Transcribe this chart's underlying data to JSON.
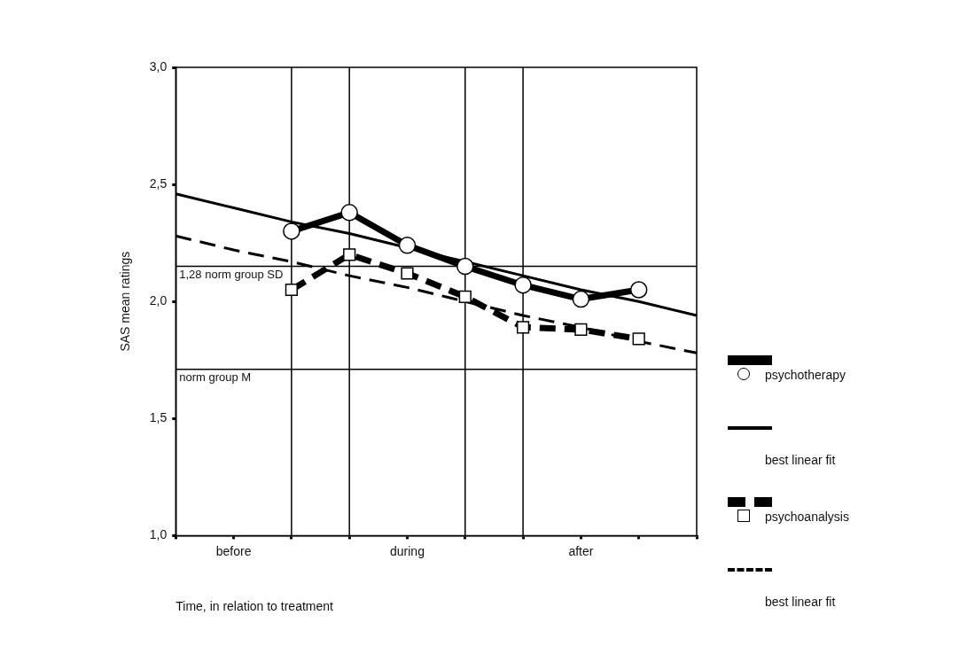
{
  "chart_data": {
    "type": "line",
    "xlabel": "Time, in relation to treatment",
    "ylabel": "SAS mean ratings",
    "categories": [
      null,
      "before",
      null,
      null,
      "during",
      null,
      null,
      "after",
      null,
      null
    ],
    "series": [
      {
        "name": "psychotherapy",
        "color": "#000000",
        "marker": "circle",
        "line_style": "solid",
        "values": [
          null,
          null,
          2.3,
          2.38,
          2.24,
          2.15,
          2.07,
          2.01,
          2.05,
          null
        ]
      },
      {
        "name": "best linear fit",
        "color": "#000000",
        "marker": "none",
        "line_style": "solid",
        "values": [
          2.46,
          2.4,
          2.34,
          2.29,
          2.23,
          2.17,
          2.11,
          2.05,
          2.0,
          1.94
        ]
      },
      {
        "name": "psychoanalysis",
        "color": "#000000",
        "marker": "square",
        "line_style": "dashed",
        "values": [
          null,
          null,
          2.05,
          2.2,
          2.12,
          2.02,
          1.89,
          1.88,
          1.84,
          null
        ]
      },
      {
        "name": "best linear fit",
        "color": "#000000",
        "marker": "none",
        "line_style": "dashed",
        "values": [
          2.28,
          2.22,
          2.17,
          2.11,
          2.06,
          2.0,
          1.94,
          1.89,
          1.83,
          1.78
        ]
      }
    ],
    "ylim": [
      1,
      3
    ],
    "yticks": [
      {
        "value": 1,
        "label": "1,0"
      },
      {
        "value": 1.5,
        "label": "1,5"
      },
      {
        "value": 2,
        "label": "2,0"
      },
      {
        "value": 2.5,
        "label": "2,5"
      },
      {
        "value": 3,
        "label": "3,0"
      }
    ],
    "ref_lines": [
      {
        "axis": "y",
        "value": 2.15,
        "label": "1,28 norm group SD",
        "color": "#000000"
      },
      {
        "axis": "y",
        "value": 1.71,
        "label": "norm group M",
        "color": "#000000"
      }
    ],
    "grid": "x",
    "legend": "right"
  }
}
